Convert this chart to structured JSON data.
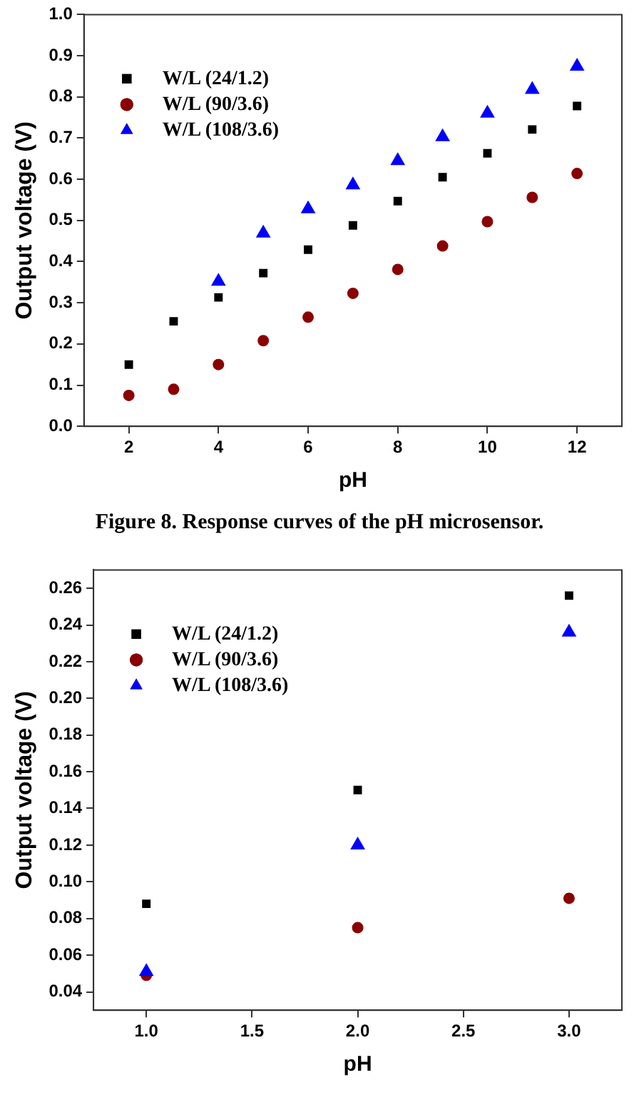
{
  "chart_data": [
    {
      "type": "scatter",
      "xlabel": "pH",
      "ylabel": "Output voltage (V)",
      "annotations": [
        "Figure 8. Response curves of the pH microsensor."
      ],
      "xlim": [
        1,
        13
      ],
      "xticks": [
        2,
        4,
        6,
        8,
        10,
        12
      ],
      "ylim": [
        0,
        1
      ],
      "yticks": [
        {
          "value": 0,
          "label": "0.0"
        },
        0.1,
        0.2,
        0.3,
        0.4,
        0.5,
        0.6,
        0.7,
        0.8,
        0.9,
        {
          "value": 1,
          "label": "1.0"
        }
      ],
      "grid": false,
      "legend": "top left",
      "series": [
        {
          "name": "W/L (24/1.2)",
          "color": "#000000",
          "marker": "square",
          "x": [
            2,
            3,
            4,
            5,
            6,
            7,
            8,
            9,
            10,
            11,
            12
          ],
          "values": [
            0.15,
            0.255,
            0.313,
            0.372,
            0.429,
            0.488,
            0.547,
            0.605,
            0.663,
            0.721,
            0.778
          ]
        },
        {
          "name": "W/L (90/3.6)",
          "color": "#8b0000",
          "marker": "circle",
          "x": [
            2,
            3,
            4,
            5,
            6,
            7,
            8,
            9,
            10,
            11,
            12
          ],
          "values": [
            0.075,
            0.09,
            0.15,
            0.208,
            0.265,
            0.323,
            0.381,
            0.438,
            0.497,
            0.556,
            0.614
          ]
        },
        {
          "name": "W/L (108/3.6)",
          "color": "#0000ff",
          "marker": "triangle",
          "x": [
            4,
            5,
            6,
            7,
            8,
            9,
            10,
            11,
            12
          ],
          "values": [
            0.352,
            0.469,
            0.528,
            0.586,
            0.645,
            0.703,
            0.76,
            0.818,
            0.874
          ]
        }
      ]
    },
    {
      "type": "scatter",
      "xlabel": "pH",
      "ylabel": "Output voltage (V)",
      "xlim": [
        0.75,
        3.25
      ],
      "xticks": [
        {
          "value": 1,
          "label": "1.0"
        },
        1.5,
        {
          "value": 2,
          "label": "2.0"
        },
        2.5,
        {
          "value": 3,
          "label": "3.0"
        }
      ],
      "ylim": [
        0.03,
        0.27
      ],
      "yticks": [
        {
          "value": 0.04,
          "label": "0.04"
        },
        {
          "value": 0.06,
          "label": "0.06"
        },
        {
          "value": 0.08,
          "label": "0.08"
        },
        {
          "value": 0.1,
          "label": "0.10"
        },
        0.12,
        0.14,
        0.16,
        0.18,
        {
          "value": 0.2,
          "label": "0.20"
        },
        0.22,
        0.24,
        0.26
      ],
      "grid": false,
      "legend": "top left",
      "series": [
        {
          "name": "W/L (24/1.2)",
          "color": "#000000",
          "marker": "square",
          "x": [
            1,
            2,
            3
          ],
          "values": [
            0.088,
            0.15,
            0.256
          ]
        },
        {
          "name": "W/L (90/3.6)",
          "color": "#8b0000",
          "marker": "circle",
          "x": [
            1,
            2,
            3
          ],
          "values": [
            0.049,
            0.075,
            0.091
          ]
        },
        {
          "name": "W/L (108/3.6)",
          "color": "#0000ff",
          "marker": "triangle",
          "x": [
            1,
            2,
            3
          ],
          "values": [
            0.051,
            0.12,
            0.236
          ]
        }
      ]
    }
  ]
}
